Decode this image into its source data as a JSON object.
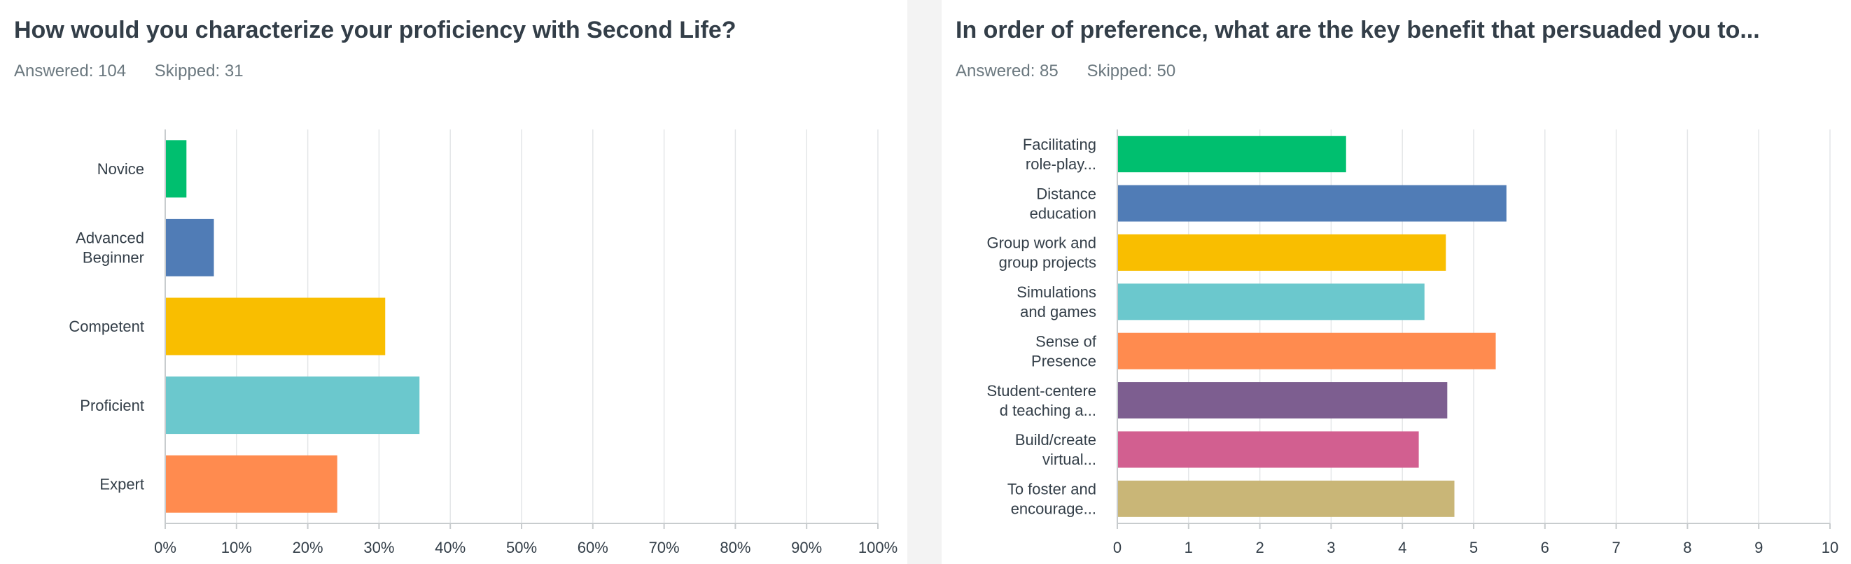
{
  "questions": [
    {
      "title": "How would you characterize your proficiency with Second Life?",
      "answered": "Answered: 104",
      "skipped": "Skipped: 31"
    },
    {
      "title": "In order of preference, what are the key benefit that persuaded you to...",
      "answered": "Answered: 85",
      "skipped": "Skipped: 50"
    }
  ],
  "chart_data": [
    {
      "type": "bar",
      "orientation": "horizontal",
      "categories": [
        [
          "Novice"
        ],
        [
          "Advanced",
          "Beginner"
        ],
        [
          "Competent"
        ],
        [
          "Proficient"
        ],
        [
          "Expert"
        ]
      ],
      "values": [
        2.88,
        6.73,
        30.77,
        35.58,
        24.04
      ],
      "xticks": [
        "0%",
        "10%",
        "20%",
        "30%",
        "40%",
        "50%",
        "60%",
        "70%",
        "80%",
        "90%",
        "100%"
      ],
      "xlim": [
        0,
        100
      ],
      "colors": [
        "#00bf6f",
        "#507cb6",
        "#f9be00",
        "#6bc8cd",
        "#ff8b4f"
      ],
      "grid": true
    },
    {
      "type": "bar",
      "orientation": "horizontal",
      "categories": [
        [
          "Facilitating",
          "role-play..."
        ],
        [
          "Distance",
          "education"
        ],
        [
          "Group work and",
          "group projects"
        ],
        [
          "Simulations",
          "and games"
        ],
        [
          "Sense of",
          "Presence"
        ],
        [
          "Student-centere",
          "d teaching a..."
        ],
        [
          "Build/create",
          "virtual..."
        ],
        [
          "To foster and",
          "encourage..."
        ]
      ],
      "values": [
        3.2,
        5.45,
        4.6,
        4.3,
        5.3,
        4.62,
        4.22,
        4.72
      ],
      "xticks": [
        "0",
        "1",
        "2",
        "3",
        "4",
        "5",
        "6",
        "7",
        "8",
        "9",
        "10"
      ],
      "xlim": [
        0,
        10
      ],
      "colors": [
        "#00bf6f",
        "#507cb6",
        "#f9be00",
        "#6bc8cd",
        "#ff8b4f",
        "#7d5e90",
        "#d25f90",
        "#c9b677"
      ],
      "grid": true
    }
  ]
}
